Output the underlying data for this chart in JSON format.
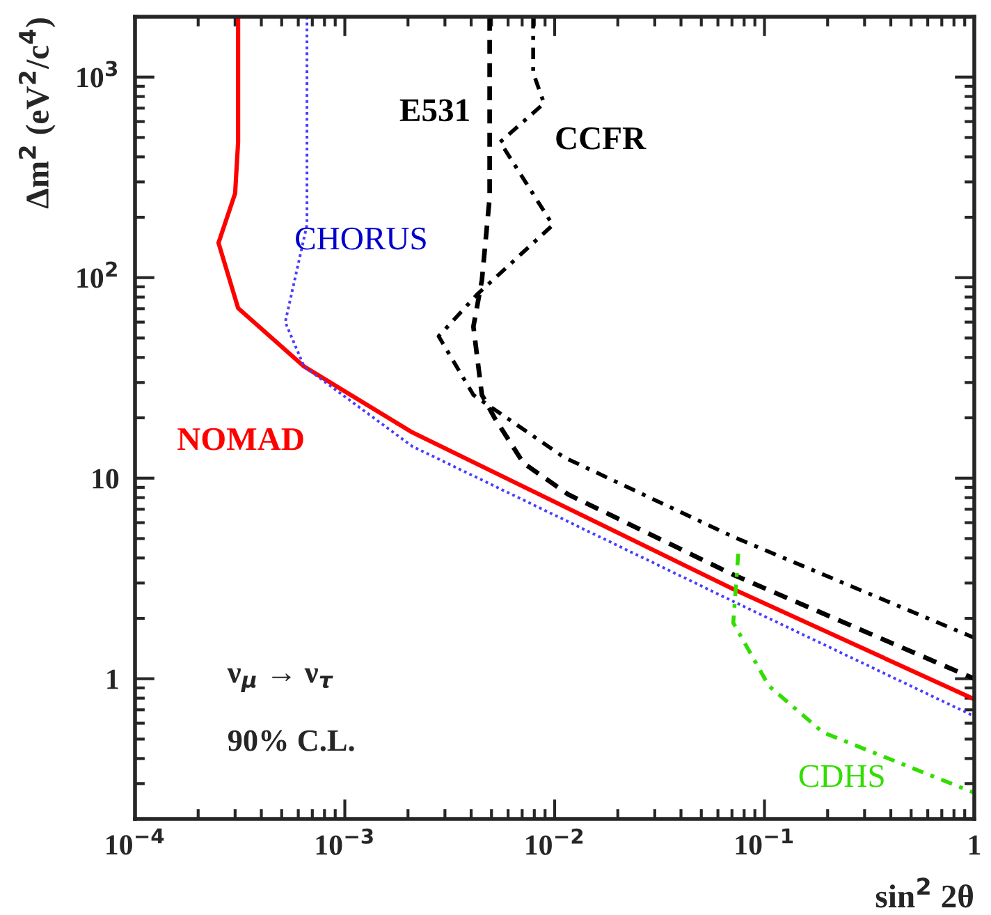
{
  "chart_data": {
    "type": "line",
    "xlabel": "sin$^{2}$ 2θ",
    "ylabel": "Δm$^{2}$ (eV$^{2}$/c$^{4}$)",
    "log": "xy",
    "xlim": [
      0.0001,
      1
    ],
    "ylim": [
      0.2,
      2000
    ],
    "xticks": [
      {
        "value": 0.0001,
        "label": "10$^{−4}$"
      },
      {
        "value": 0.001,
        "label": "10$^{−3}$"
      },
      {
        "value": 0.01,
        "label": "10$^{−2}$"
      },
      {
        "value": 0.1,
        "label": "10$^{−1}$"
      },
      {
        "value": 1,
        "label": "1"
      }
    ],
    "yticks": [
      1,
      10,
      {
        "value": 100,
        "label": "10$^{2}$"
      },
      {
        "value": 1000,
        "label": "10$^{3}$"
      }
    ],
    "grid": false,
    "legend": false,
    "marker": "none",
    "series": [
      {
        "name": "NOMAD",
        "color": "#ff0000",
        "line_style": "solid",
        "x": [
          0.00031,
          0.00031,
          0.0003,
          0.00025,
          0.00031,
          0.00064,
          0.0021,
          0.071,
          1
        ],
        "values": [
          2000,
          474,
          263,
          149,
          70.5,
          36,
          16.9,
          2.8,
          0.79
        ]
      },
      {
        "name": "CHORUS",
        "color": "#4a3cff",
        "line_style": "dotted",
        "x": [
          0.00066,
          0.00066,
          0.00052,
          0.00064,
          0.0021,
          0.071,
          1
        ],
        "values": [
          2000,
          183,
          60,
          36,
          14.4,
          2.43,
          0.65
        ]
      },
      {
        "name": "E531",
        "color": "#000000",
        "line_style": "dashed",
        "x": [
          0.0049,
          0.0049,
          0.0045,
          0.0041,
          0.0045,
          0.0052,
          0.0071,
          0.0116,
          0.071,
          1
        ],
        "values": [
          2000,
          251,
          97,
          57,
          26,
          19.8,
          11.9,
          8.3,
          3.3,
          1.0
        ]
      },
      {
        "name": "CCFR",
        "color": "#000000",
        "line_style": "dashdot",
        "x": [
          0.0079,
          0.0079,
          0.0089,
          0.0055,
          0.0098,
          0.0043,
          0.0028,
          0.0041,
          0.0111,
          0.071,
          1
        ],
        "values": [
          2000,
          1050,
          740,
          474,
          183,
          83,
          51,
          26,
          12.7,
          5.1,
          1.6
        ]
      },
      {
        "name": "CDHS",
        "color": "#33dd00",
        "line_style": "dashdot",
        "x": [
          0.075,
          0.071,
          0.105,
          0.19,
          1
        ],
        "values": [
          4.2,
          1.9,
          0.92,
          0.54,
          0.27
        ]
      }
    ],
    "annotations": [
      "ν$_{μ}$ → ν$_{τ}$",
      "90% C.L."
    ]
  }
}
